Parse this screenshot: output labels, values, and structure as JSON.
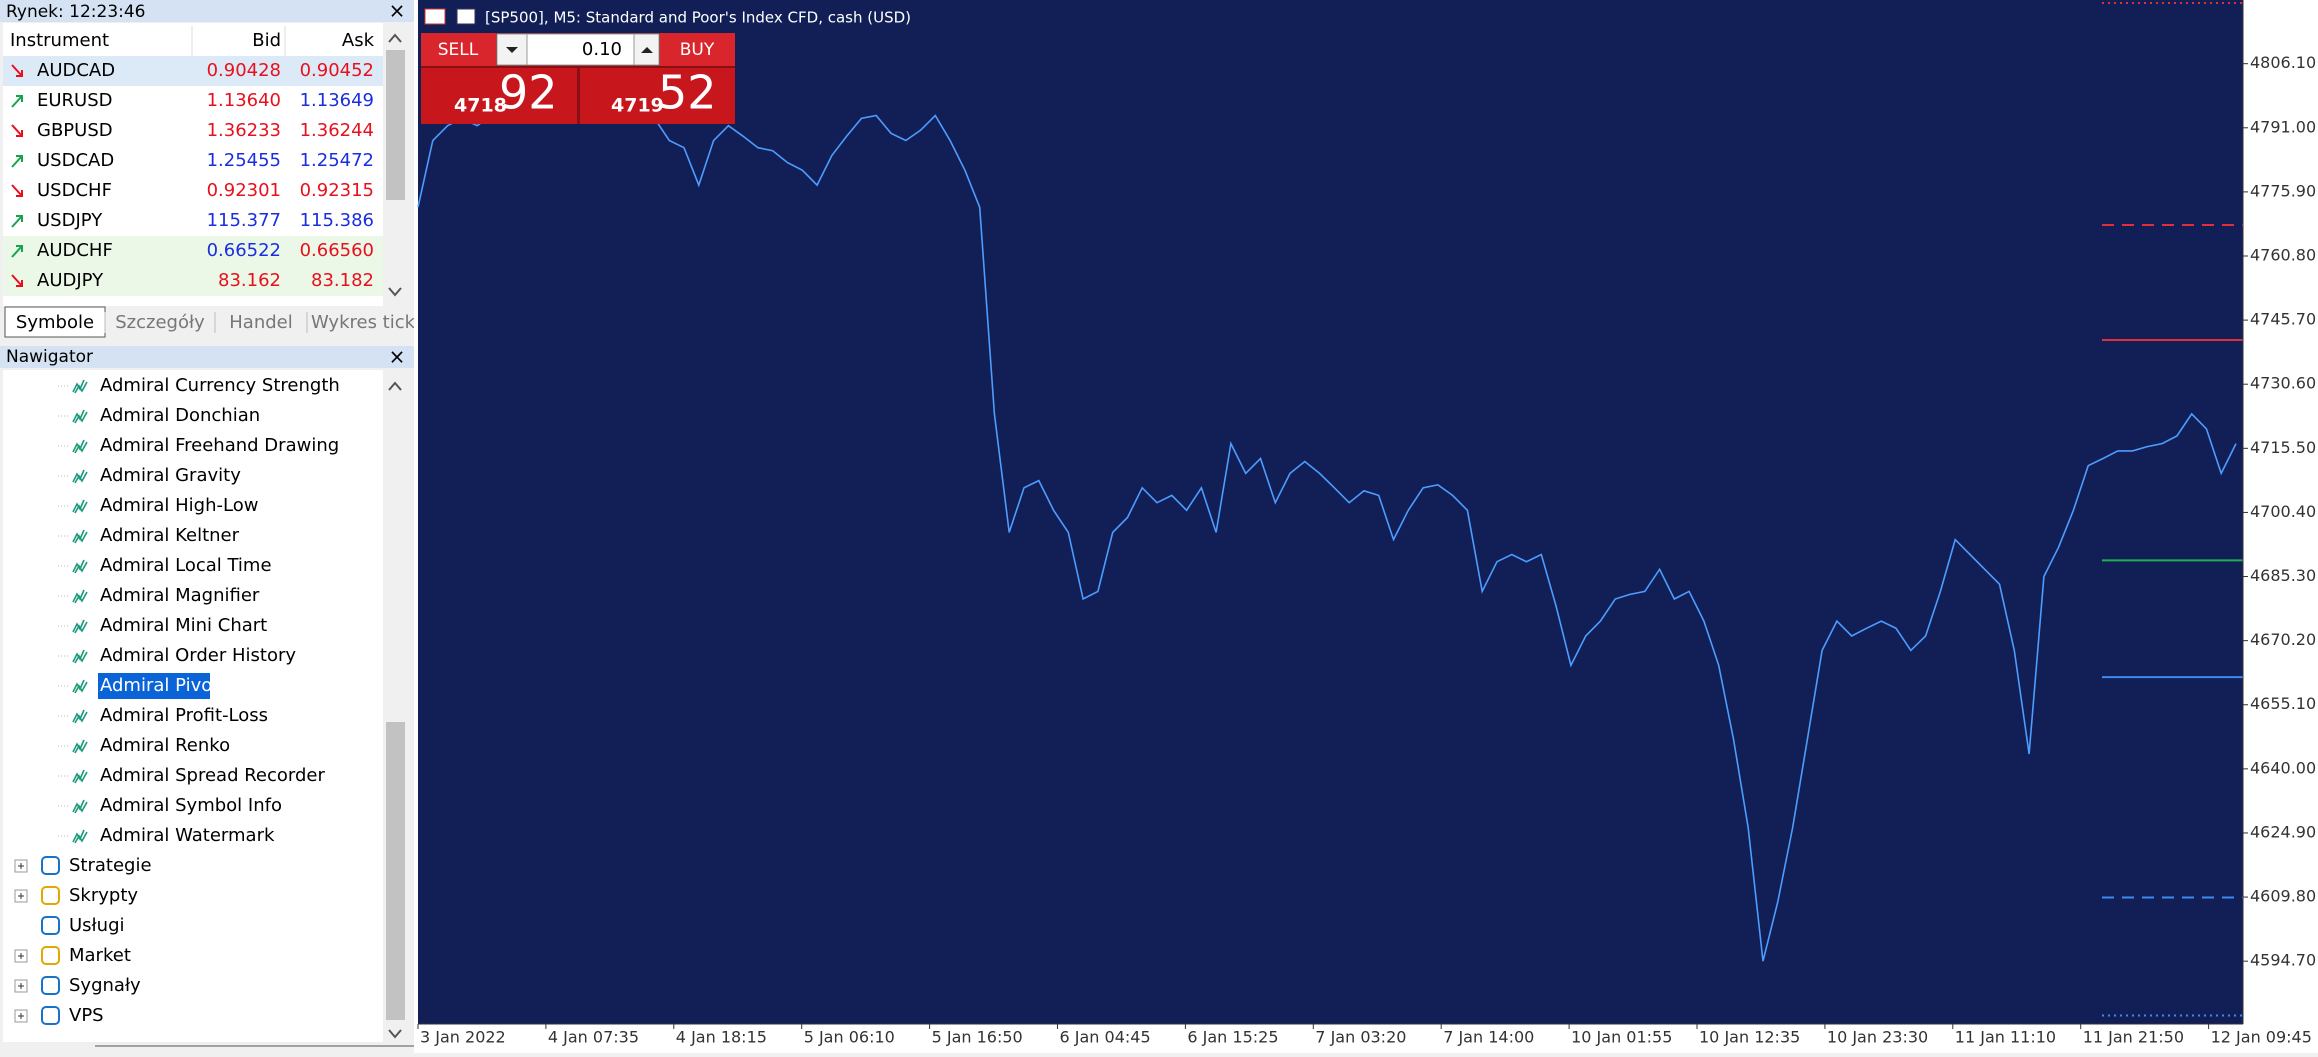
{
  "market_watch": {
    "title": "Rynek: 12:23:46",
    "close": "×",
    "columns": [
      "Instrument",
      "Bid",
      "Ask"
    ],
    "rows": [
      {
        "symbol": "AUDCAD",
        "dir": "down",
        "bid": "0.90428",
        "ask": "0.90452",
        "bid_color": "#e8101c",
        "ask_color": "#e8101c",
        "bg": "#dceaf8"
      },
      {
        "symbol": "EURUSD",
        "dir": "up",
        "bid": "1.13640",
        "ask": "1.13649",
        "bid_color": "#e8101c",
        "ask_color": "#1a2ee0",
        "bg": "#ffffff"
      },
      {
        "symbol": "GBPUSD",
        "dir": "down",
        "bid": "1.36233",
        "ask": "1.36244",
        "bid_color": "#e8101c",
        "ask_color": "#e8101c",
        "bg": "#ffffff"
      },
      {
        "symbol": "USDCAD",
        "dir": "up",
        "bid": "1.25455",
        "ask": "1.25472",
        "bid_color": "#1a2ee0",
        "ask_color": "#1a2ee0",
        "bg": "#ffffff"
      },
      {
        "symbol": "USDCHF",
        "dir": "down",
        "bid": "0.92301",
        "ask": "0.92315",
        "bid_color": "#e8101c",
        "ask_color": "#e8101c",
        "bg": "#ffffff"
      },
      {
        "symbol": "USDJPY",
        "dir": "up",
        "bid": "115.377",
        "ask": "115.386",
        "bid_color": "#1a2ee0",
        "ask_color": "#1a2ee0",
        "bg": "#ffffff"
      },
      {
        "symbol": "AUDCHF",
        "dir": "up",
        "bid": "0.66522",
        "ask": "0.66560",
        "bid_color": "#1a2ee0",
        "ask_color": "#e8101c",
        "bg": "#ebf7e7"
      },
      {
        "symbol": "AUDJPY",
        "dir": "down",
        "bid": "83.162",
        "ask": "83.182",
        "bid_color": "#e8101c",
        "ask_color": "#e8101c",
        "bg": "#ebf7e7"
      }
    ],
    "tabs": [
      "Symbole",
      "Szczegóły",
      "Handel",
      "Wykres tick"
    ]
  },
  "navigator": {
    "title": "Nawigator",
    "close": "×",
    "items": [
      "Admiral Currency Strength",
      "Admiral Donchian",
      "Admiral Freehand Drawing",
      "Admiral Gravity",
      "Admiral High-Low",
      "Admiral Keltner",
      "Admiral Local Time",
      "Admiral Magnifier",
      "Admiral Mini Chart",
      "Admiral Order History",
      "Admiral Pivot",
      "Admiral Profit-Loss",
      "Admiral Renko",
      "Admiral Spread Recorder",
      "Admiral Symbol Info",
      "Admiral Watermark"
    ],
    "selected": 10,
    "groups": [
      {
        "label": "Strategie",
        "expandable": true
      },
      {
        "label": "Skrypty",
        "expandable": true
      },
      {
        "label": "Usługi",
        "expandable": false
      },
      {
        "label": "Market",
        "expandable": true
      },
      {
        "label": "Sygnały",
        "expandable": true
      },
      {
        "label": "VPS",
        "expandable": true
      }
    ]
  },
  "trade_panel": {
    "sell": "SELL",
    "buy": "BUY",
    "volume": "0.10",
    "sell_price_big": "4718",
    "sell_price_small": "92",
    "buy_price_big": "4719",
    "buy_price_small": "52"
  },
  "chart": {
    "type": "line",
    "title": "[SP500], M5:  Standard and Poor's Index CFD, cash (USD)",
    "color": "#4d9cff",
    "background": "#121f57",
    "ylim": [
      4579.9,
      4821.1
    ],
    "yticks": [
      {
        "value": 4806.1,
        "label": "4806.10"
      },
      {
        "value": 4791.0,
        "label": "4791.00"
      },
      {
        "value": 4775.9,
        "label": "4775.90"
      },
      {
        "value": 4760.8,
        "label": "4760.80"
      },
      {
        "value": 4745.7,
        "label": "4745.70"
      },
      {
        "value": 4730.6,
        "label": "4730.60"
      },
      {
        "value": 4715.5,
        "label": "4715.50"
      },
      {
        "value": 4700.4,
        "label": "4700.40"
      },
      {
        "value": 4685.3,
        "label": "4685.30"
      },
      {
        "value": 4670.2,
        "label": "4670.20"
      },
      {
        "value": 4655.1,
        "label": "4655.10"
      },
      {
        "value": 4640.0,
        "label": "4640.00"
      },
      {
        "value": 4624.9,
        "label": "4624.90"
      },
      {
        "value": 4609.8,
        "label": "4609.80"
      },
      {
        "value": 4594.7,
        "label": "4594.70"
      }
    ],
    "x_labels": [
      "3 Jan 2022",
      "4 Jan 07:35",
      "4 Jan 18:15",
      "5 Jan 06:10",
      "5 Jan 16:50",
      "6 Jan 04:45",
      "6 Jan 15:25",
      "7 Jan 03:20",
      "7 Jan 14:00",
      "10 Jan 01:55",
      "10 Jan 12:35",
      "10 Jan 23:30",
      "11 Jan 11:10",
      "11 Jan 21:50",
      "12 Jan 09:45"
    ],
    "values": [
      4772.3,
      4788.0,
      4791.5,
      4793.2,
      4791.5,
      4793.9,
      4795.0,
      4796.0,
      4796.7,
      4796.0,
      4797.4,
      4798.4,
      4799.5,
      4800.2,
      4799.5,
      4796.7,
      4793.2,
      4788.0,
      4786.3,
      4777.5,
      4788.0,
      4791.5,
      4789.0,
      4786.3,
      4785.6,
      4782.8,
      4781.0,
      4777.5,
      4784.5,
      4789.0,
      4793.2,
      4793.9,
      4789.7,
      4788.0,
      4790.4,
      4793.9,
      4788.0,
      4781.0,
      4772.3,
      4723.6,
      4695.7,
      4706.2,
      4707.9,
      4700.9,
      4695.7,
      4680.0,
      4681.8,
      4695.7,
      4699.2,
      4706.2,
      4702.7,
      4704.4,
      4700.9,
      4706.2,
      4695.7,
      4716.6,
      4709.6,
      4713.1,
      4702.7,
      4709.6,
      4712.4,
      4709.6,
      4706.2,
      4702.7,
      4705.5,
      4704.4,
      4694.0,
      4700.9,
      4706.2,
      4706.9,
      4704.4,
      4700.9,
      4681.8,
      4688.8,
      4690.5,
      4688.8,
      4690.5,
      4678.3,
      4664.4,
      4671.3,
      4674.8,
      4680.0,
      4681.1,
      4681.8,
      4687.0,
      4680.0,
      4681.8,
      4674.8,
      4664.4,
      4647.0,
      4626.1,
      4594.7,
      4608.7,
      4626.1,
      4647.0,
      4667.9,
      4674.8,
      4671.3,
      4673.1,
      4674.8,
      4673.1,
      4667.9,
      4671.3,
      4681.8,
      4694.0,
      4690.5,
      4687.0,
      4683.5,
      4667.9,
      4643.5,
      4685.3,
      4692.2,
      4700.9,
      4711.4,
      4713.1,
      4714.9,
      4714.9,
      4715.9,
      4716.6,
      4718.4,
      4723.6,
      4720.1,
      4709.6,
      4716.6
    ],
    "levels": [
      {
        "value": 4820.4,
        "color": "#e0303a",
        "style": "dotted"
      },
      {
        "value": 4768.1,
        "color": "#e0303a",
        "style": "dashed"
      },
      {
        "value": 4741.0,
        "color": "#e0303a",
        "style": "solid"
      },
      {
        "value": 4689.1,
        "color": "#1fb04f",
        "style": "solid"
      },
      {
        "value": 4661.6,
        "color": "#3d8af0",
        "style": "solid"
      },
      {
        "value": 4609.7,
        "color": "#3d8af0",
        "style": "dashed"
      },
      {
        "value": 4581.9,
        "color": "#3d8af0",
        "style": "dotted"
      }
    ]
  }
}
